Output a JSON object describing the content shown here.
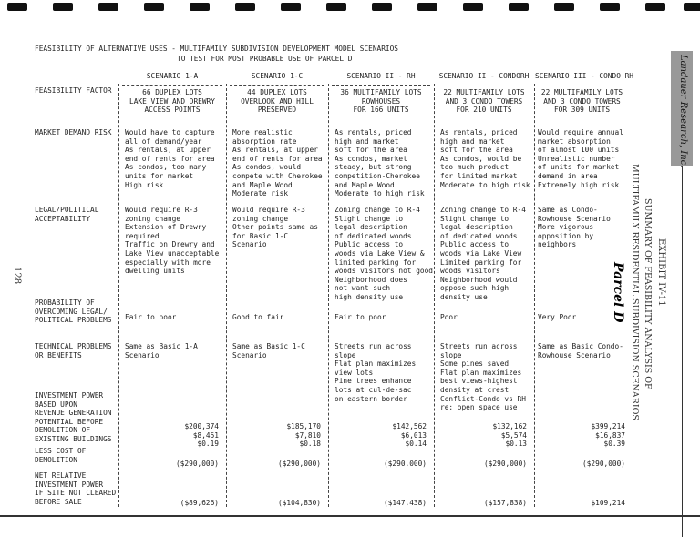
{
  "title_line1": "FEASIBILITY OF ALTERNATIVE USES - MULTIFAMILY SUBDIVISION DEVELOPMENT MODEL SCENARIOS",
  "title_line2": "TO TEST FOR MOST PROBABLE USE OF PARCEL D",
  "page_number": "128",
  "exhibit": "EXHIBIT IV-11",
  "exhibit_title1": "SUMMARY OF FEASIBILITY ANALYSIS OF",
  "exhibit_title2": "MULTIFAMILY RESIDENTIAL SUBDIVISION SCENARIOS",
  "handwritten_note": "Parcel D",
  "logo_text": "Landauer Research, Inc.",
  "factor_header": "FEASIBILITY FACTOR",
  "scenarios": [
    {
      "name": "SCENARIO 1-A",
      "desc": "66 DUPLEX LOTS\nLAKE VIEW AND DREWRY\nACCESS POINTS",
      "market": "Would have to capture\nall of demand/year\nAs rentals, at upper\nend of rents for area\nAs condos, too many\nunits for market\nHigh risk",
      "legal": "Would require R-3\nzoning change\nExtension of Drewry\nrequired\nTraffic on Drewry and\nLake View unacceptable\nespecially with more\ndwelling units",
      "probability": "Fair to poor",
      "technical": "Same as Basic 1-A\nScenario",
      "investment": "$200,374\n$8,451\n$0.19",
      "demolition": "($290,000)",
      "net": "($89,626)"
    },
    {
      "name": "SCENARIO 1-C",
      "desc": "44 DUPLEX LOTS\nOVERLOOK AND HILL\nPRESERVED",
      "market": "More realistic\nabsorption rate\nAs rentals, at upper\nend of rents for area\nAs condos, would\ncompete with Cherokee\nand Maple Wood\nModerate risk",
      "legal": "Would require R-3\nzoning change\nOther points same as\nfor Basic 1-C\nScenario",
      "probability": "Good to fair",
      "technical": "Same as Basic 1-C\nScenario",
      "investment": "$185,170\n$7,810\n$0.18",
      "demolition": "($290,000)",
      "net": "($104,830)"
    },
    {
      "name": "SCENARIO II - RH",
      "desc": "36 MULTIFAMILY LOTS\nROWHOUSES\nFOR 166 UNITS",
      "market": "As rentals, priced\nhigh and market\nsoft for the area\nAs condos, market\nsteady, but strong\ncompetition-Cherokee\nand Maple Wood\nModerate to high risk",
      "legal": "Zoning change to R-4\nSlight change to\nlegal description\nof dedicated woods\nPublic access to\nwoods via Lake View &\nlimited parking for\nwoods visitors not good\nNeighborhood does\nnot want such\nhigh density use",
      "probability": "Fair to poor",
      "technical": "Streets run across\nslope\nFlat plan maximizes\nview lots\nPine trees enhance\nlots at cul-de-sac\non eastern border",
      "investment": "$142,562\n$6,013\n$0.14",
      "demolition": "($290,000)",
      "net": "($147,438)"
    },
    {
      "name": "SCENARIO II - CONDORH",
      "desc": "22 MULTIFAMILY LOTS\nAND 3 CONDO TOWERS\nFOR 210 UNITS",
      "market": "As rentals, priced\nhigh and market\nsoft for the area\nAs condos, would be\ntoo much product\nfor limited market\nModerate to high risk",
      "legal": "Zoning change to R-4\nSlight change to\nlegal description\nof dedicated woods\nPublic access to\nwoods via Lake View\nLimited parking for\nwoods visitors\nNeighborhood would\noppose such high\ndensity use",
      "probability": "Poor",
      "technical": "Streets run across\nslope\nSome pines saved\nFlat plan maximizes\nbest views-highest\ndensity at crest\nConflict-Condo vs RH\nre: open space use",
      "investment": "$132,162\n$5,574\n$0.13",
      "demolition": "($290,000)",
      "net": "($157,838)"
    },
    {
      "name": "SCENARIO III - CONDO RH",
      "desc": "22 MULTIFAMILY LOTS\nAND 3 CONDO TOWERS\nFOR 309 UNITS",
      "market": "Would require annual\nmarket absorption\nof almost 100 units\nUnrealistic number\nof units for market\ndemand in area\nExtremely high risk",
      "legal": "Same as Condo-\nRowhouse Scenario\nMore vigorous\nopposition by\nneighbors",
      "probability": "Very Poor",
      "technical": "Same as Basic Condo-\nRowhouse Scenario",
      "investment": "$399,214\n$16,837\n$0.39",
      "demolition": "($290,000)",
      "net": "$109,214"
    }
  ],
  "factors": {
    "market": "MARKET DEMAND RISK",
    "legal": "LEGAL/POLITICAL\nACCEPTABILITY",
    "probability": "PROBABILITY OF\nOVERCOMING LEGAL/\nPOLITICAL PROBLEMS",
    "technical": "TECHNICAL PROBLEMS\nOR BENEFITS",
    "investment": "INVESTMENT POWER\nBASED UPON\nREVENUE GENERATION\nPOTENTIAL BEFORE\nDEMOLITION OF\nEXISTING BUILDINGS",
    "demolition": "LESS COST OF\nDEMOLITION",
    "net": "NET RELATIVE\nINVESTMENT POWER\nIF SITE NOT CLEARED\nBEFORE SALE"
  }
}
